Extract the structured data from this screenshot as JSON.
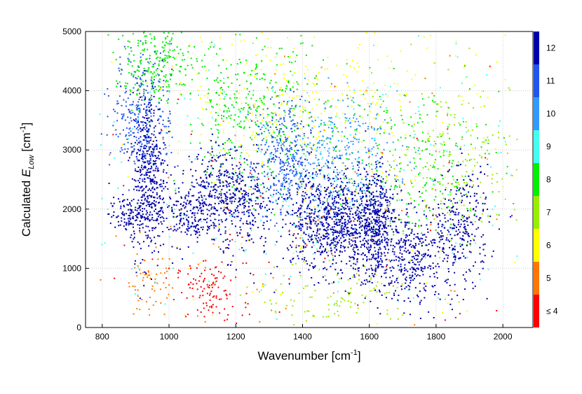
{
  "chart_data": {
    "type": "scatter",
    "xlabel": {
      "prefix": "Wavenumber [cm",
      "sup": "-1",
      "suffix": "]"
    },
    "ylabel": {
      "prefix": "Calculated ",
      "italic": "E",
      "sub": "Low",
      "mid": " [cm",
      "sup": "-1",
      "suffix": "]"
    },
    "xlim": [
      750,
      2090
    ],
    "ylim": [
      0,
      5000
    ],
    "xticks": [
      800,
      1000,
      1200,
      1400,
      1600,
      1800,
      2000
    ],
    "xtick_labels": [
      "800",
      "1000",
      "1200",
      "1400",
      "1600",
      "1800",
      "2000"
    ],
    "yticks": [
      0,
      1000,
      2000,
      3000,
      4000,
      5000
    ],
    "ytick_labels": [
      "0",
      "1000",
      "2000",
      "3000",
      "4000",
      "5000"
    ],
    "grid": true,
    "colorbar": {
      "position": "right",
      "bins": [
        {
          "label": "≤ 4",
          "color": "#ff0000"
        },
        {
          "label": "5",
          "color": "#ff7700"
        },
        {
          "label": "6",
          "color": "#ffff00"
        },
        {
          "label": "7",
          "color": "#99ee00"
        },
        {
          "label": "8",
          "color": "#00ee00"
        },
        {
          "label": "9",
          "color": "#44ffee"
        },
        {
          "label": "10",
          "color": "#3399ff"
        },
        {
          "label": "11",
          "color": "#2255ee"
        },
        {
          "label": "12",
          "color": "#0000aa"
        }
      ]
    },
    "clusters": [
      {
        "cx": 940,
        "cy": 2600,
        "sx": 25,
        "sy": 700,
        "n": 420,
        "level": 12
      },
      {
        "cx": 920,
        "cy": 3600,
        "sx": 45,
        "sy": 500,
        "n": 300,
        "level": 11
      },
      {
        "cx": 880,
        "cy": 1900,
        "sx": 30,
        "sy": 150,
        "n": 120,
        "level": 12
      },
      {
        "cx": 1050,
        "cy": 1900,
        "sx": 50,
        "sy": 250,
        "n": 220,
        "level": 12
      },
      {
        "cx": 1150,
        "cy": 2400,
        "sx": 45,
        "sy": 350,
        "n": 260,
        "level": 12
      },
      {
        "cx": 1230,
        "cy": 2000,
        "sx": 40,
        "sy": 400,
        "n": 200,
        "level": 12
      },
      {
        "cx": 1340,
        "cy": 2800,
        "sx": 40,
        "sy": 500,
        "n": 320,
        "level": 11
      },
      {
        "cx": 1450,
        "cy": 1800,
        "sx": 60,
        "sy": 450,
        "n": 500,
        "level": 12
      },
      {
        "cx": 1560,
        "cy": 1700,
        "sx": 50,
        "sy": 400,
        "n": 420,
        "level": 12
      },
      {
        "cx": 1620,
        "cy": 1800,
        "sx": 25,
        "sy": 500,
        "n": 330,
        "level": 12
      },
      {
        "cx": 1730,
        "cy": 1200,
        "sx": 60,
        "sy": 400,
        "n": 380,
        "level": 12
      },
      {
        "cx": 1880,
        "cy": 1700,
        "sx": 40,
        "sy": 500,
        "n": 260,
        "level": 12
      },
      {
        "cx": 1500,
        "cy": 2800,
        "sx": 90,
        "sy": 550,
        "n": 380,
        "level": 10
      },
      {
        "cx": 1250,
        "cy": 3600,
        "sx": 110,
        "sy": 650,
        "n": 380,
        "level": 8
      },
      {
        "cx": 960,
        "cy": 4500,
        "sx": 60,
        "sy": 350,
        "n": 250,
        "level": 8
      },
      {
        "cx": 1700,
        "cy": 2800,
        "sx": 150,
        "sy": 700,
        "n": 260,
        "level": 8
      },
      {
        "cx": 1860,
        "cy": 2800,
        "sx": 120,
        "sy": 700,
        "n": 220,
        "level": 7
      },
      {
        "cx": 1400,
        "cy": 3900,
        "sx": 200,
        "sy": 600,
        "n": 260,
        "level": 6
      },
      {
        "cx": 1120,
        "cy": 600,
        "sx": 50,
        "sy": 250,
        "n": 110,
        "level": 4
      },
      {
        "cx": 940,
        "cy": 800,
        "sx": 30,
        "sy": 300,
        "n": 60,
        "level": 5
      },
      {
        "cx": 1500,
        "cy": 500,
        "sx": 120,
        "sy": 300,
        "n": 120,
        "level": 7
      },
      {
        "cx": 1400,
        "cy": 2500,
        "sx": 350,
        "sy": 1300,
        "n": 320,
        "level": 9
      },
      {
        "cx": 1400,
        "cy": 2500,
        "sx": 380,
        "sy": 1400,
        "n": 220,
        "level": 6
      },
      {
        "cx": 1400,
        "cy": 2000,
        "sx": 400,
        "sy": 1300,
        "n": 100,
        "level": 5
      },
      {
        "cx": 1400,
        "cy": 1800,
        "sx": 400,
        "sy": 1300,
        "n": 80,
        "level": 4
      }
    ]
  }
}
